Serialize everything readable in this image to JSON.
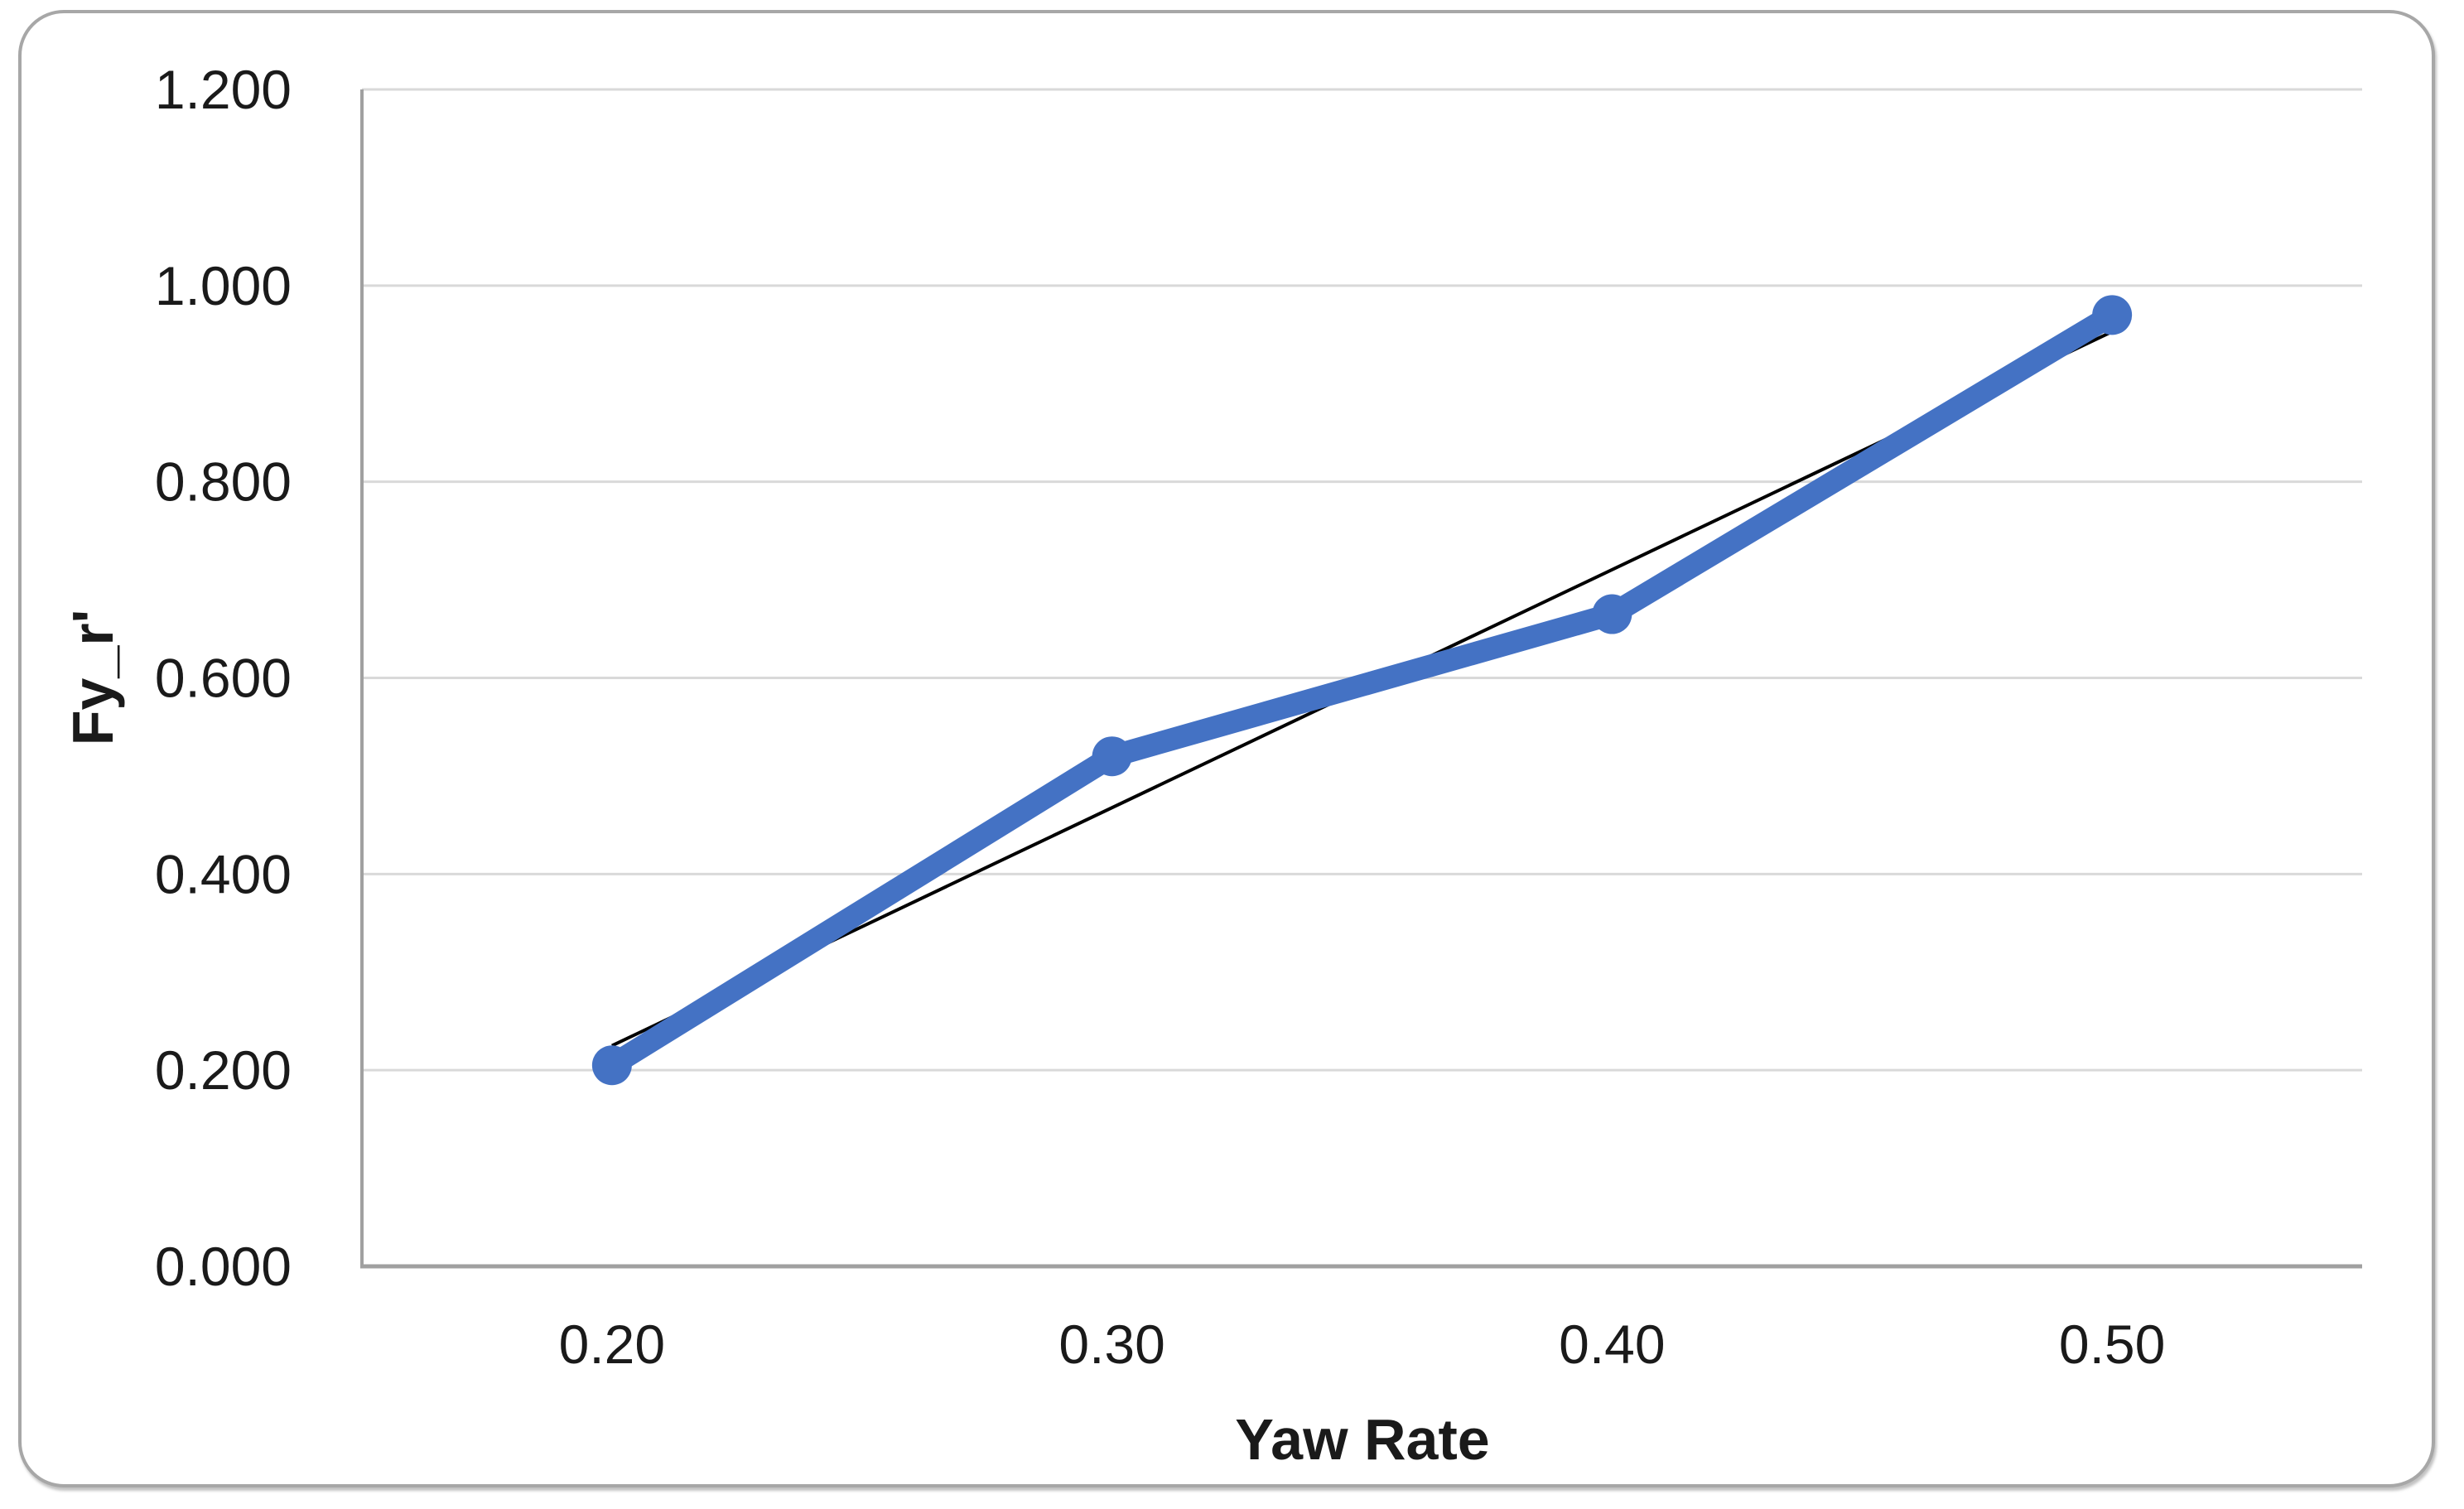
{
  "chart_data": {
    "type": "line",
    "title": "",
    "xlabel": "Yaw Rate",
    "ylabel": "Fy_r'",
    "categories": [
      "0.20",
      "0.30",
      "0.40",
      "0.50"
    ],
    "series": [
      {
        "name": "Fy_r'",
        "values": [
          0.205,
          0.52,
          0.665,
          0.97
        ]
      }
    ],
    "trendline": {
      "type": "linear",
      "start_value": 0.225,
      "end_value": 0.953
    },
    "ylim": [
      0,
      1.2
    ],
    "y_ticks": [
      0,
      0.2,
      0.4,
      0.6,
      0.8,
      1.0,
      1.2
    ],
    "y_tick_labels": [
      "0.000",
      "0.200",
      "0.400",
      "0.600",
      "0.800",
      "1.000",
      "1.200"
    ],
    "grid": "horizontal-only",
    "legend": "none",
    "marker": "circle",
    "colors": {
      "series": "#4472C4",
      "trendline": "#000000",
      "gridline": "#D9D9D9",
      "axis_line": "#A0A0A0",
      "frame_border": "#A7A7A7",
      "text": "#1A1A1A"
    }
  }
}
